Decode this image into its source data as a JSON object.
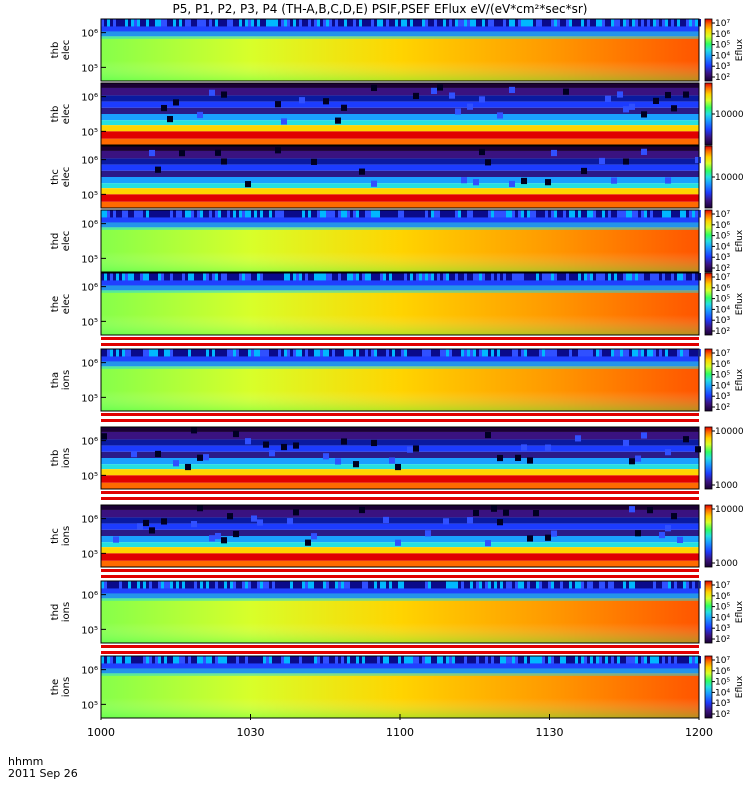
{
  "title": "P5, P1, P2, P3, P4 (TH-A,B,C,D,E) PSIF,PSEF EFlux eV/(eV*cm²*sec*sr)",
  "x_axis": {
    "var_label": "hhmm",
    "date_label": "2011 Sep 26",
    "ticks": [
      "1000",
      "1030",
      "1100",
      "1130",
      "1200"
    ]
  },
  "chart_data": {
    "type": "heatmap",
    "x_range": [
      "1000",
      "1200"
    ],
    "y_scale": "log",
    "panels": [
      {
        "label": [
          "thb",
          "elec"
        ],
        "y_ticks": [
          "10⁵",
          "10⁶"
        ],
        "cb": [
          "10²",
          "10³",
          "10⁴",
          "10⁵",
          "10⁶",
          "10⁷"
        ],
        "cb_label": "Eflux",
        "style": "smooth",
        "gap": false
      },
      {
        "label": [
          "thb",
          "elec"
        ],
        "y_ticks": [
          "10⁵",
          "10⁶"
        ],
        "cb": [
          "10000"
        ],
        "cb_label": "",
        "style": "banded",
        "gap": false
      },
      {
        "label": [
          "thc",
          "elec"
        ],
        "y_ticks": [
          "10⁵",
          "10⁶"
        ],
        "cb": [
          "10000"
        ],
        "cb_label": "",
        "style": "banded",
        "gap": false
      },
      {
        "label": [
          "thd",
          "elec"
        ],
        "y_ticks": [
          "10⁵",
          "10⁶"
        ],
        "cb": [
          "10²",
          "10³",
          "10⁴",
          "10⁵",
          "10⁶",
          "10⁷"
        ],
        "cb_label": "Eflux",
        "style": "smooth",
        "gap": false
      },
      {
        "label": [
          "the",
          "elec"
        ],
        "y_ticks": [
          "10⁵",
          "10⁶"
        ],
        "cb": [
          "10²",
          "10³",
          "10⁴",
          "10⁵",
          "10⁶",
          "10⁷"
        ],
        "cb_label": "Eflux",
        "style": "smooth",
        "gap": true
      },
      {
        "label": [
          "tha",
          "ions"
        ],
        "y_ticks": [
          "10⁵",
          "10⁶"
        ],
        "cb": [
          "10²",
          "10³",
          "10⁴",
          "10⁵",
          "10⁶",
          "10⁷"
        ],
        "cb_label": "Eflux",
        "style": "smooth",
        "gap": true
      },
      {
        "label": [
          "thb",
          "ions"
        ],
        "y_ticks": [
          "10⁵",
          "10⁶"
        ],
        "cb": [
          "1000",
          "10000"
        ],
        "cb_label": "",
        "style": "banded",
        "gap": true
      },
      {
        "label": [
          "thc",
          "ions"
        ],
        "y_ticks": [
          "10⁵",
          "10⁶"
        ],
        "cb": [
          "1000",
          "10000"
        ],
        "cb_label": "",
        "style": "banded",
        "gap": true
      },
      {
        "label": [
          "thd",
          "ions"
        ],
        "y_ticks": [
          "10⁵",
          "10⁶"
        ],
        "cb": [
          "10²",
          "10³",
          "10⁴",
          "10⁵",
          "10⁶",
          "10⁷"
        ],
        "cb_label": "Eflux",
        "style": "smooth",
        "gap": true
      },
      {
        "label": [
          "the",
          "ions"
        ],
        "y_ticks": [
          "10⁵",
          "10⁶"
        ],
        "cb": [
          "10²",
          "10³",
          "10⁴",
          "10⁵",
          "10⁶",
          "10⁷"
        ],
        "cb_label": "Eflux",
        "style": "smooth",
        "gap": false
      }
    ]
  }
}
